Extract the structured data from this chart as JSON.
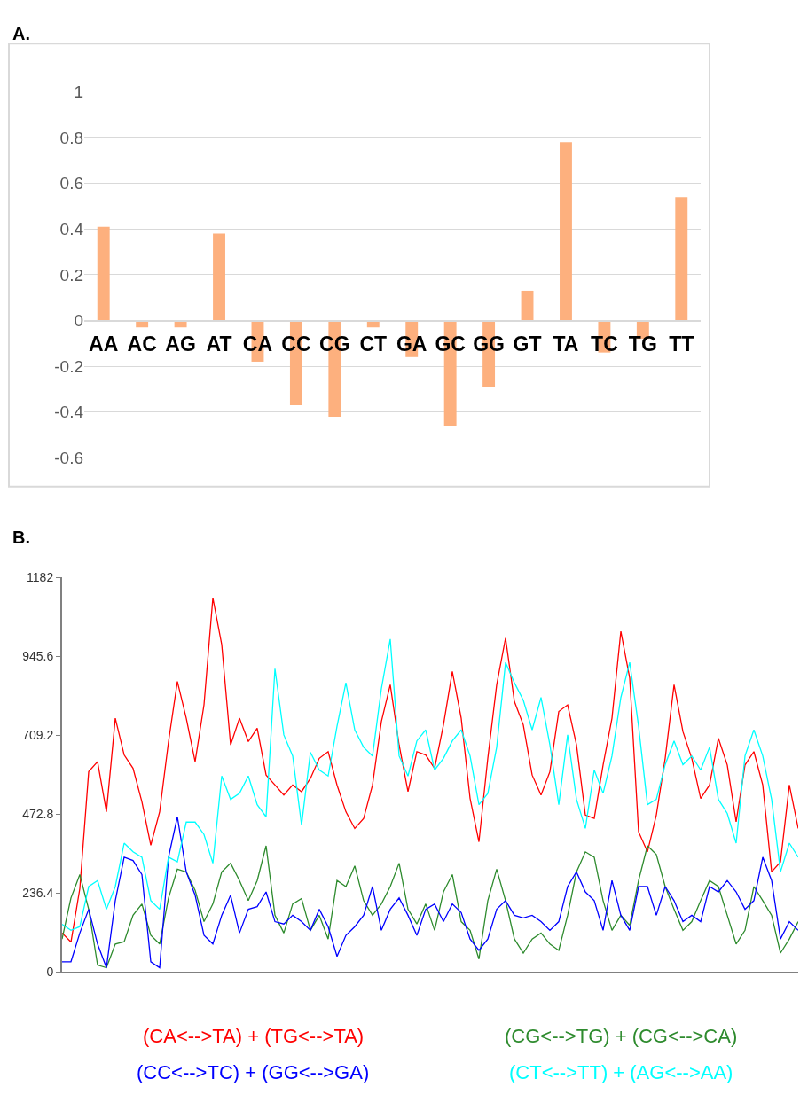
{
  "chart_data": [
    {
      "type": "bar",
      "title": "A.",
      "categories": [
        "AA",
        "AC",
        "AG",
        "AT",
        "CA",
        "CC",
        "CG",
        "CT",
        "GA",
        "GC",
        "GG",
        "GT",
        "TA",
        "TC",
        "TG",
        "TT"
      ],
      "values": [
        0.41,
        -0.03,
        -0.03,
        0.38,
        -0.18,
        -0.37,
        -0.42,
        -0.03,
        -0.16,
        -0.46,
        -0.29,
        0.13,
        0.78,
        -0.14,
        -0.08,
        0.54
      ],
      "color": "#fdb07e",
      "ylim": [
        -0.6,
        1
      ],
      "yticks": [
        -0.6,
        -0.4,
        -0.2,
        0,
        0.2,
        0.4,
        0.6,
        0.8,
        1
      ],
      "grid": "y"
    },
    {
      "type": "line",
      "title": "B.",
      "categories": [
        null,
        null,
        null,
        null,
        null,
        null,
        null,
        null,
        null,
        null,
        null,
        null,
        null,
        null,
        null,
        null,
        null,
        null,
        null,
        null,
        null,
        null,
        null,
        null,
        null,
        null,
        null,
        null,
        null,
        null,
        null,
        null,
        null,
        null,
        null,
        null,
        null,
        null,
        null,
        null,
        null,
        null,
        null,
        null,
        null,
        null,
        null,
        null,
        null,
        null,
        null,
        null,
        null,
        null,
        null,
        null,
        null,
        null,
        null,
        null,
        null,
        null,
        null,
        null,
        null,
        null,
        null,
        null,
        null,
        null,
        null,
        null,
        null,
        null,
        null,
        null,
        null,
        null,
        null,
        null,
        null,
        null,
        null,
        null
      ],
      "series": [
        {
          "name": "(CA<-->TA) + (TG<-->TA)",
          "color": "#ff0000",
          "values": [
            117,
            90,
            250,
            600,
            630,
            480,
            760,
            650,
            610,
            510,
            380,
            480,
            690,
            870,
            760,
            630,
            800,
            1120,
            980,
            680,
            760,
            690,
            730,
            590,
            560,
            530,
            560,
            540,
            580,
            640,
            660,
            560,
            480,
            430,
            460,
            560,
            750,
            860,
            680,
            540,
            660,
            650,
            610,
            740,
            900,
            760,
            520,
            390,
            640,
            860,
            1000,
            810,
            740,
            590,
            530,
            600,
            780,
            800,
            680,
            470,
            460,
            620,
            760,
            1020,
            880,
            420,
            360,
            470,
            640,
            860,
            720,
            640,
            520,
            560,
            700,
            620,
            450,
            620,
            660,
            560,
            300,
            330,
            560,
            430
          ]
        },
        {
          "name": "(CG<-->TG) + (CG<-->CA)",
          "color": "#2e8b2e",
          "values": [
            99,
            222,
            292,
            188,
            21,
            13,
            84,
            91,
            170,
            204,
            110,
            84,
            222,
            308,
            300,
            245,
            151,
            204,
            300,
            326,
            274,
            214,
            274,
            378,
            170,
            117,
            204,
            220,
            125,
            170,
            99,
            274,
            256,
            318,
            214,
            170,
            204,
            256,
            326,
            188,
            144,
            204,
            125,
            240,
            292,
            151,
            125,
            39,
            214,
            308,
            214,
            99,
            57,
            99,
            117,
            84,
            65,
            170,
            300,
            360,
            344,
            214,
            125,
            170,
            140,
            274,
            378,
            352,
            256,
            188,
            125,
            151,
            214,
            274,
            256,
            170,
            84,
            125,
            256,
            214,
            170,
            57,
            99,
            151
          ]
        },
        {
          "name": "(CC<-->TC) + (GG<-->GA)",
          "color": "#0000ff",
          "values": [
            31,
            31,
            117,
            188,
            84,
            13,
            214,
            344,
            334,
            292,
            31,
            13,
            344,
            465,
            300,
            230,
            110,
            84,
            170,
            230,
            117,
            188,
            196,
            240,
            151,
            144,
            170,
            151,
            125,
            188,
            136,
            47,
            110,
            136,
            170,
            256,
            125,
            188,
            222,
            170,
            110,
            188,
            204,
            151,
            204,
            178,
            99,
            65,
            99,
            188,
            214,
            170,
            162,
            170,
            151,
            125,
            151,
            256,
            300,
            240,
            214,
            125,
            274,
            170,
            125,
            256,
            256,
            170,
            256,
            214,
            151,
            170,
            151,
            256,
            240,
            274,
            240,
            188,
            214,
            344,
            274,
            99,
            151,
            125
          ]
        },
        {
          "name": "(CT<-->TT) + (AG<-->AA)",
          "color": "#00ffff",
          "values": [
            143,
            125,
            136,
            256,
            274,
            188,
            256,
            386,
            360,
            344,
            214,
            188,
            344,
            330,
            449,
            449,
            412,
            326,
            587,
            517,
            535,
            587,
            501,
            465,
            908,
            710,
            647,
            440,
            658,
            605,
            587,
            736,
            866,
            725,
            673,
            647,
            848,
            997,
            647,
            587,
            692,
            725,
            605,
            640,
            692,
            725,
            647,
            501,
            535,
            673,
            927,
            866,
            814,
            725,
            822,
            680,
            501,
            710,
            517,
            430,
            605,
            535,
            647,
            822,
            927,
            736,
            501,
            517,
            621,
            692,
            621,
            647,
            605,
            673,
            517,
            475,
            386,
            647,
            725,
            647,
            517,
            300,
            386,
            344
          ]
        }
      ],
      "ylim": [
        0,
        1182
      ],
      "yticks": [
        0,
        236.4,
        472.8,
        709.2,
        945.6,
        1182
      ],
      "grid": false,
      "legend": "bottom",
      "tick_labels": "y"
    }
  ]
}
